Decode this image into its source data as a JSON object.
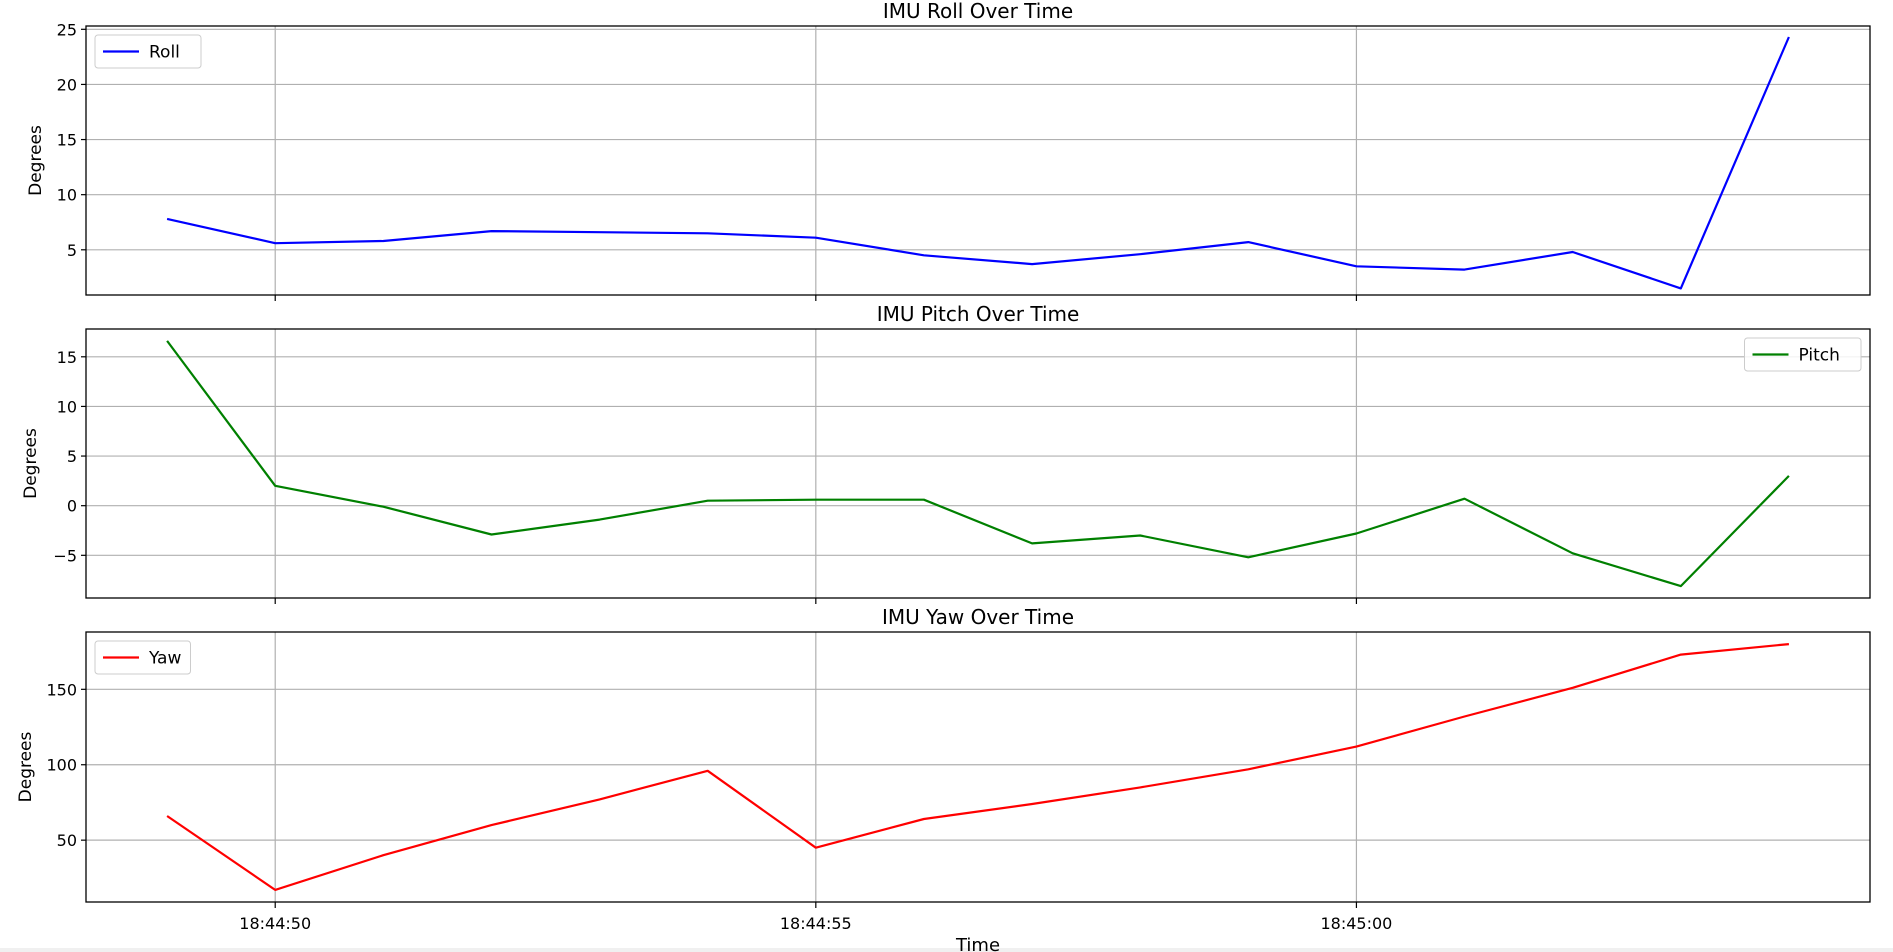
{
  "chart_data": [
    {
      "type": "line",
      "title": "IMU Roll Over Time",
      "xlabel": "",
      "ylabel": "Degrees",
      "x": [
        "18:44:49",
        "18:44:50",
        "18:44:51",
        "18:44:52",
        "18:44:53",
        "18:44:54",
        "18:44:55",
        "18:44:56",
        "18:44:57",
        "18:44:58",
        "18:44:59",
        "18:45:00",
        "18:45:01",
        "18:45:02",
        "18:45:03",
        "18:45:04"
      ],
      "xticks": [
        "18:44:50",
        "18:44:55",
        "18:45:00"
      ],
      "xlim": [
        "18:44:48.25",
        "18:45:04.75"
      ],
      "ylim": [
        0.9,
        25.3
      ],
      "yticks": [
        5,
        10,
        15,
        20,
        25
      ],
      "grid": true,
      "legend": "upper left",
      "series": [
        {
          "name": "Roll",
          "color": "#0000ff",
          "values": [
            7.8,
            5.6,
            5.8,
            6.7,
            6.6,
            6.5,
            6.1,
            4.5,
            3.7,
            4.6,
            5.7,
            3.5,
            3.2,
            4.8,
            1.5,
            24.3
          ]
        }
      ]
    },
    {
      "type": "line",
      "title": "IMU Pitch Over Time",
      "xlabel": "",
      "ylabel": "Degrees",
      "x": [
        "18:44:49",
        "18:44:50",
        "18:44:51",
        "18:44:52",
        "18:44:53",
        "18:44:54",
        "18:44:55",
        "18:44:56",
        "18:44:57",
        "18:44:58",
        "18:44:59",
        "18:45:00",
        "18:45:01",
        "18:45:02",
        "18:45:03",
        "18:45:04"
      ],
      "xticks": [
        "18:44:50",
        "18:44:55",
        "18:45:00"
      ],
      "xlim": [
        "18:44:48.25",
        "18:45:04.75"
      ],
      "ylim": [
        -9.3,
        17.8
      ],
      "yticks": [
        -5,
        0,
        5,
        10,
        15
      ],
      "grid": true,
      "legend": "upper right",
      "series": [
        {
          "name": "Pitch",
          "color": "#008000",
          "values": [
            16.6,
            2.0,
            -0.1,
            -2.9,
            -1.4,
            0.5,
            0.6,
            0.6,
            -3.8,
            -3.0,
            -5.2,
            -2.8,
            0.7,
            -4.8,
            -8.1,
            3.0
          ]
        }
      ]
    },
    {
      "type": "line",
      "title": "IMU Yaw Over Time",
      "xlabel": "Time",
      "ylabel": "Degrees",
      "x": [
        "18:44:49",
        "18:44:50",
        "18:44:51",
        "18:44:52",
        "18:44:53",
        "18:44:54",
        "18:44:55",
        "18:44:56",
        "18:44:57",
        "18:44:58",
        "18:44:59",
        "18:45:00",
        "18:45:01",
        "18:45:02",
        "18:45:03",
        "18:45:04"
      ],
      "xticks": [
        "18:44:50",
        "18:44:55",
        "18:45:00"
      ],
      "xlim": [
        "18:44:48.25",
        "18:45:04.75"
      ],
      "ylim": [
        9,
        188
      ],
      "yticks": [
        50,
        100,
        150
      ],
      "grid": true,
      "legend": "upper left",
      "series": [
        {
          "name": "Yaw",
          "color": "#ff0000",
          "values": [
            66,
            17,
            40,
            60,
            77,
            96,
            45,
            64,
            74,
            85,
            97,
            112,
            132,
            151,
            173,
            180
          ]
        }
      ]
    }
  ]
}
